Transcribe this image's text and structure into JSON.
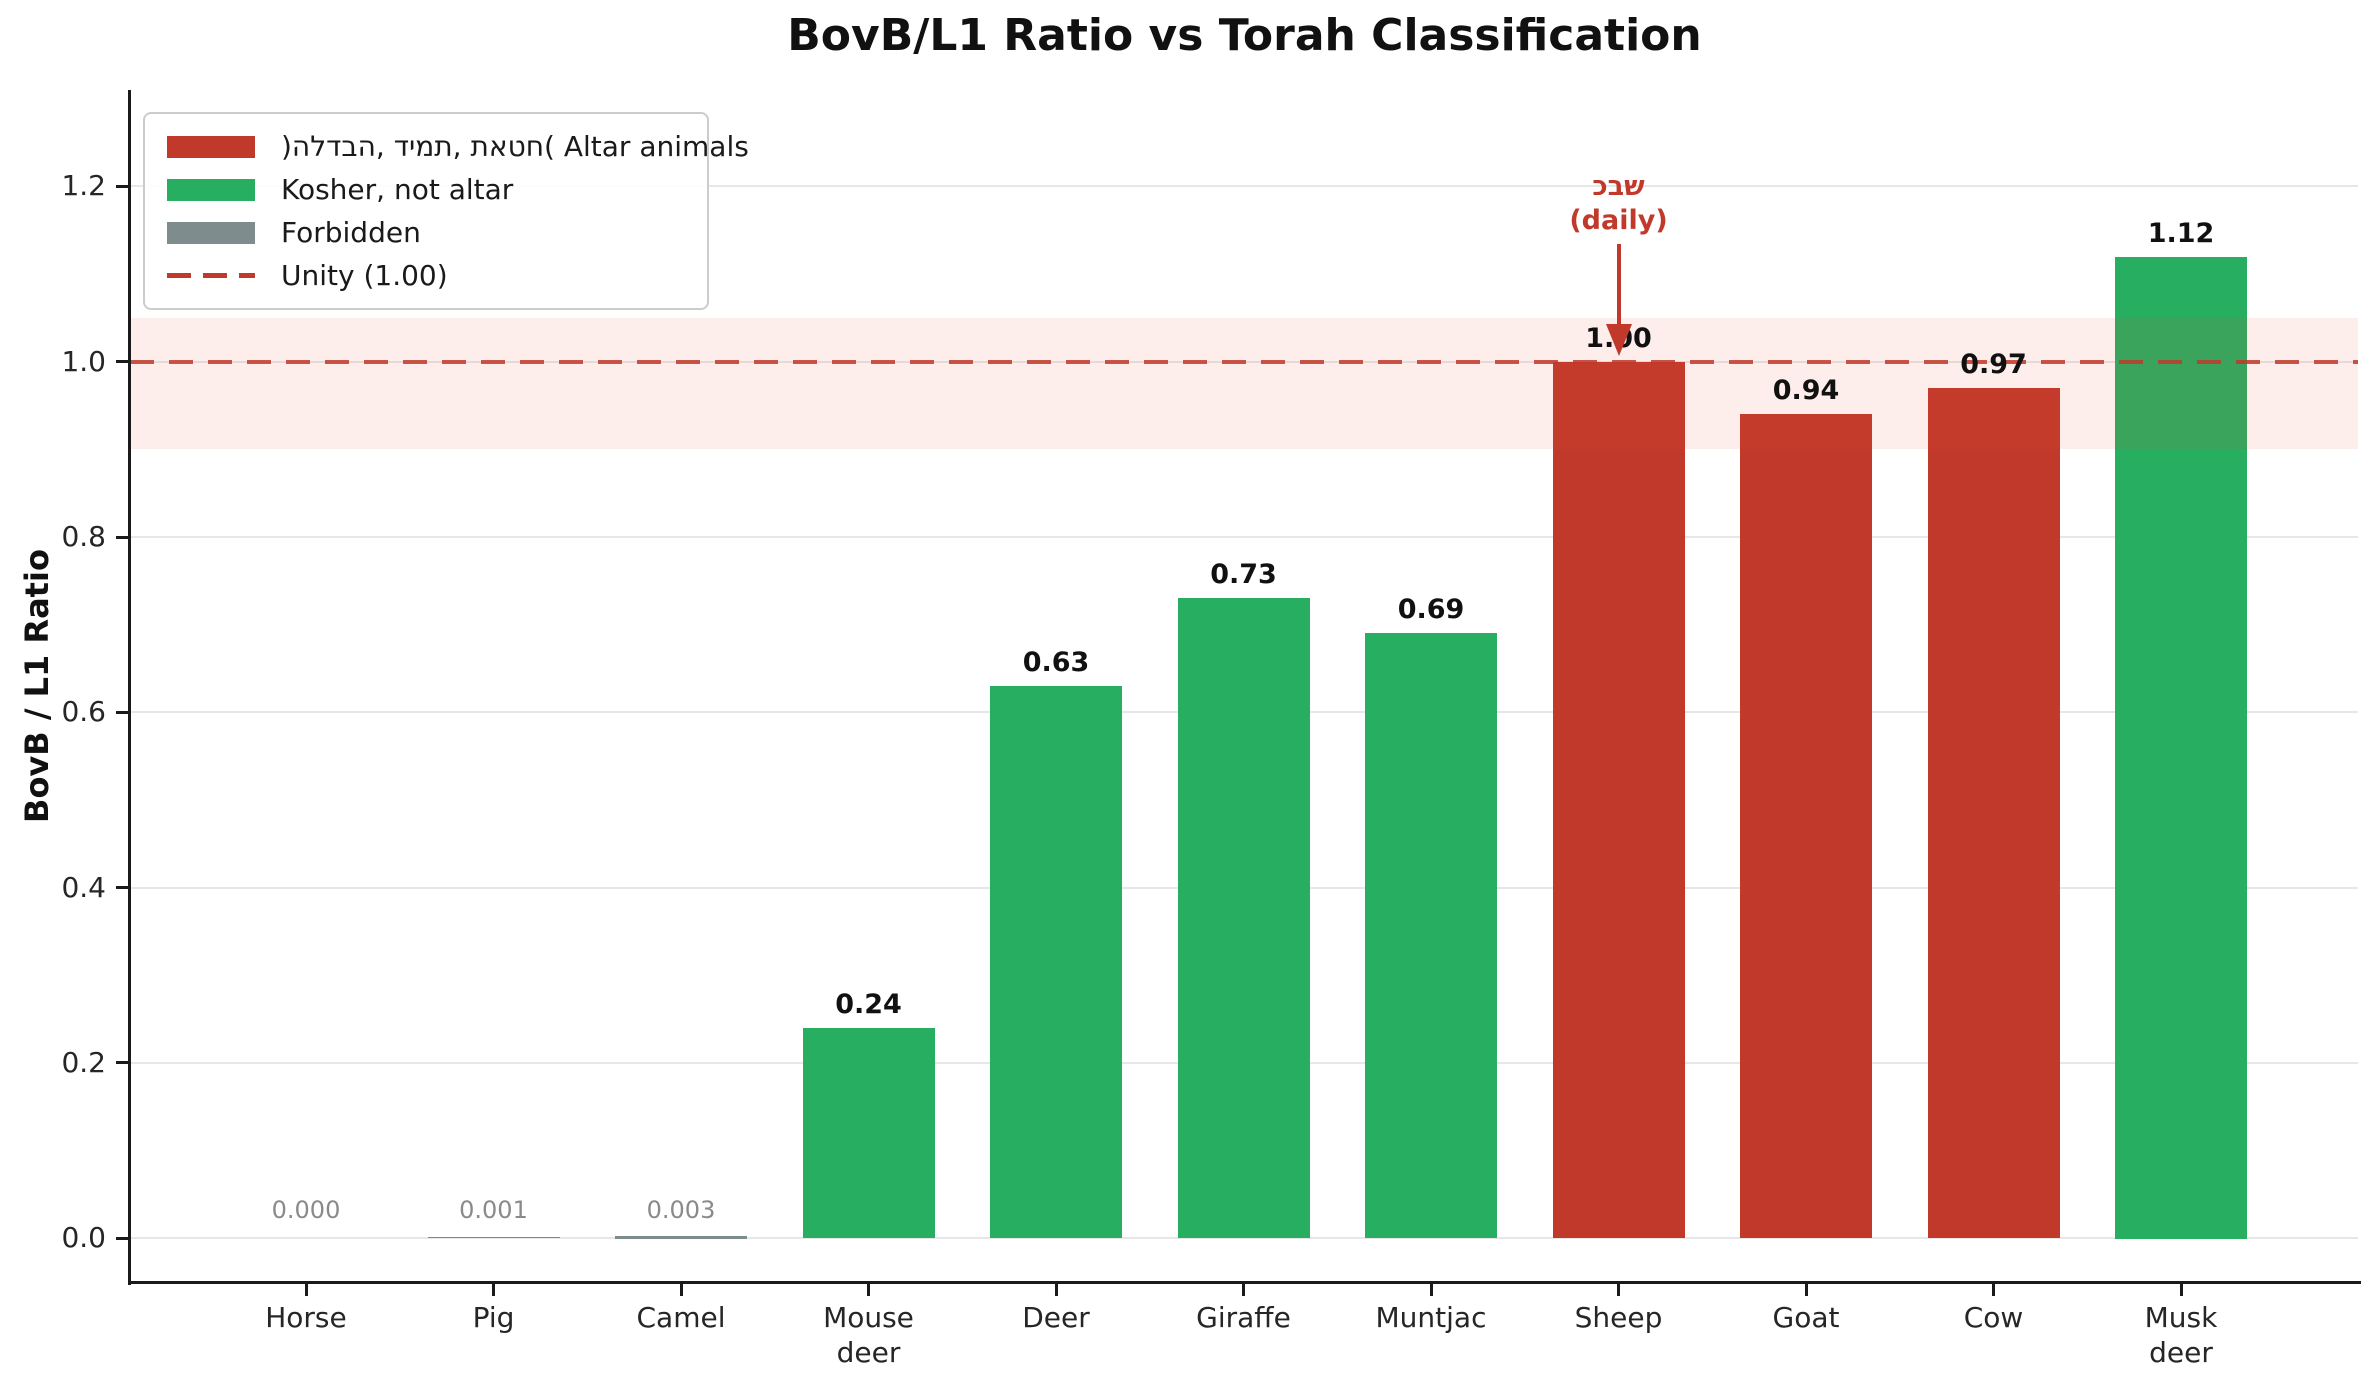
{
  "figure": {
    "title": "BovB/L1 Ratio vs Torah Classification",
    "ylabel": "BovB / L1 Ratio"
  },
  "legend": {
    "items": [
      {
        "label": ")הלדבה, דימת, תאטח( Altar animals",
        "marker": "swatch",
        "color": "#c0392b"
      },
      {
        "label": "Kosher, not altar",
        "marker": "swatch",
        "color": "#27ae60"
      },
      {
        "label": "Forbidden",
        "marker": "swatch",
        "color": "#7f8c8d"
      },
      {
        "label": "Unity (1.00)",
        "marker": "dashed-line",
        "color": "#c0392b"
      }
    ]
  },
  "annotation": {
    "line1": "כבש",
    "line2": "(daily)",
    "color": "#c0392b",
    "target_category": "Sheep"
  },
  "chart_data": {
    "type": "bar",
    "title": "BovB/L1 Ratio vs Torah Classification",
    "xlabel": "",
    "ylabel": "BovB / L1 Ratio",
    "categories": [
      "Horse",
      "Pig",
      "Camel",
      "Mouse\ndeer",
      "Deer",
      "Giraffe",
      "Muntjac",
      "Sheep",
      "Goat",
      "Cow",
      "Musk\ndeer"
    ],
    "values": [
      0.0,
      0.001,
      0.003,
      0.24,
      0.63,
      0.73,
      0.69,
      1.0,
      0.94,
      0.97,
      1.12
    ],
    "bar_labels": [
      "0.000",
      "0.001",
      "0.003",
      "0.24",
      "0.63",
      "0.73",
      "0.69",
      "1.00",
      "0.94",
      "0.97",
      "1.12"
    ],
    "groups": [
      "forbidden",
      "forbidden",
      "forbidden",
      "kosher",
      "kosher",
      "kosher",
      "kosher",
      "altar",
      "altar",
      "altar",
      "kosher"
    ],
    "group_colors": {
      "altar": "#c0392b",
      "kosher": "#27ae60",
      "forbidden": "#7f8c8d"
    },
    "yticks": [
      "0.0",
      "0.2",
      "0.4",
      "0.6",
      "0.8",
      "1.0",
      "1.2"
    ],
    "ylim": [
      -0.05,
      1.31
    ],
    "unity_line": 1.0,
    "highlight_band": [
      0.9,
      1.05
    ],
    "grid": true,
    "legend_position": "upper left"
  }
}
